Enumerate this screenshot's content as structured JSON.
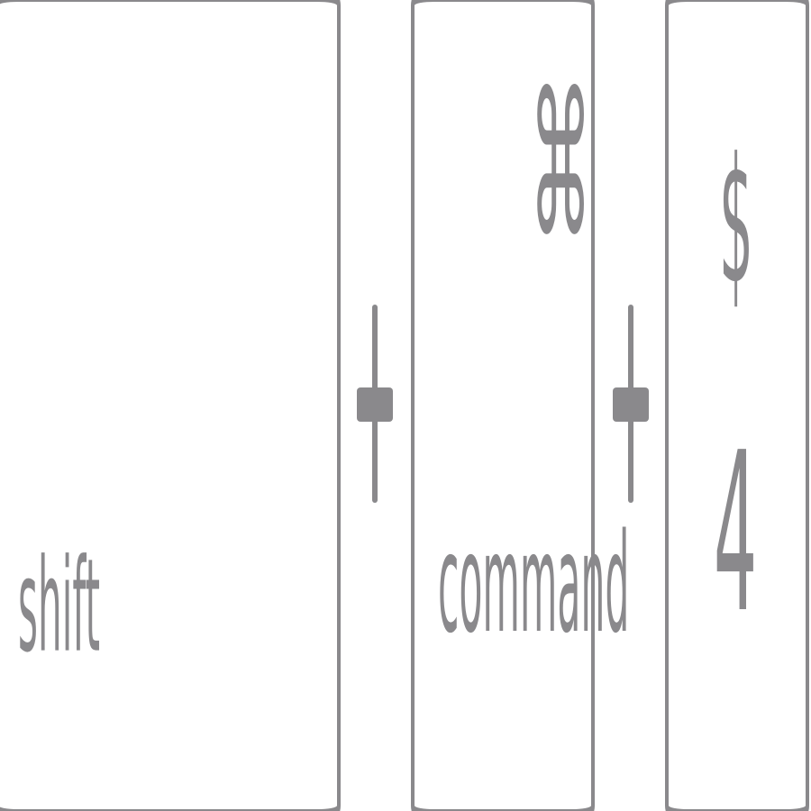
{
  "keys": {
    "shift": {
      "label": "shift"
    },
    "command": {
      "symbol": "⌘",
      "label": "command"
    },
    "four": {
      "symbol": "$",
      "label": "4"
    }
  },
  "colors": {
    "key_border": "#8a898c",
    "glyph": "#8a898c",
    "background": "#ffffff"
  },
  "icons": {
    "plus": "plus-icon"
  }
}
